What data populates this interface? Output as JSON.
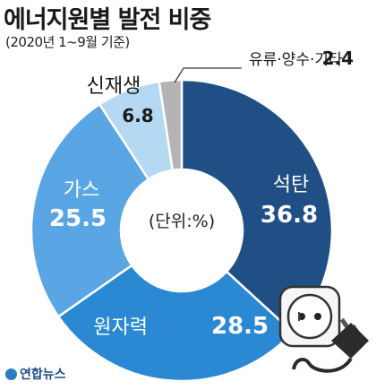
{
  "title": "에너지원별 발전 비중",
  "subtitle": "(2020년 1~9월 기준)",
  "unit_label": "(단위:%)",
  "source": "연합뉴스",
  "chart_data": {
    "type": "pie",
    "title": "에너지원별 발전 비중",
    "subtitle": "(2020년 1~9월 기준)",
    "unit": "%",
    "categories": [
      "석탄",
      "원자력",
      "가스",
      "신재생",
      "유류·양수·기타"
    ],
    "values": [
      36.8,
      28.5,
      25.5,
      6.8,
      2.4
    ],
    "colors": [
      "#1f4f84",
      "#2b88d3",
      "#5aa6e4",
      "#b5d9f3",
      "#b4b4b4"
    ]
  }
}
